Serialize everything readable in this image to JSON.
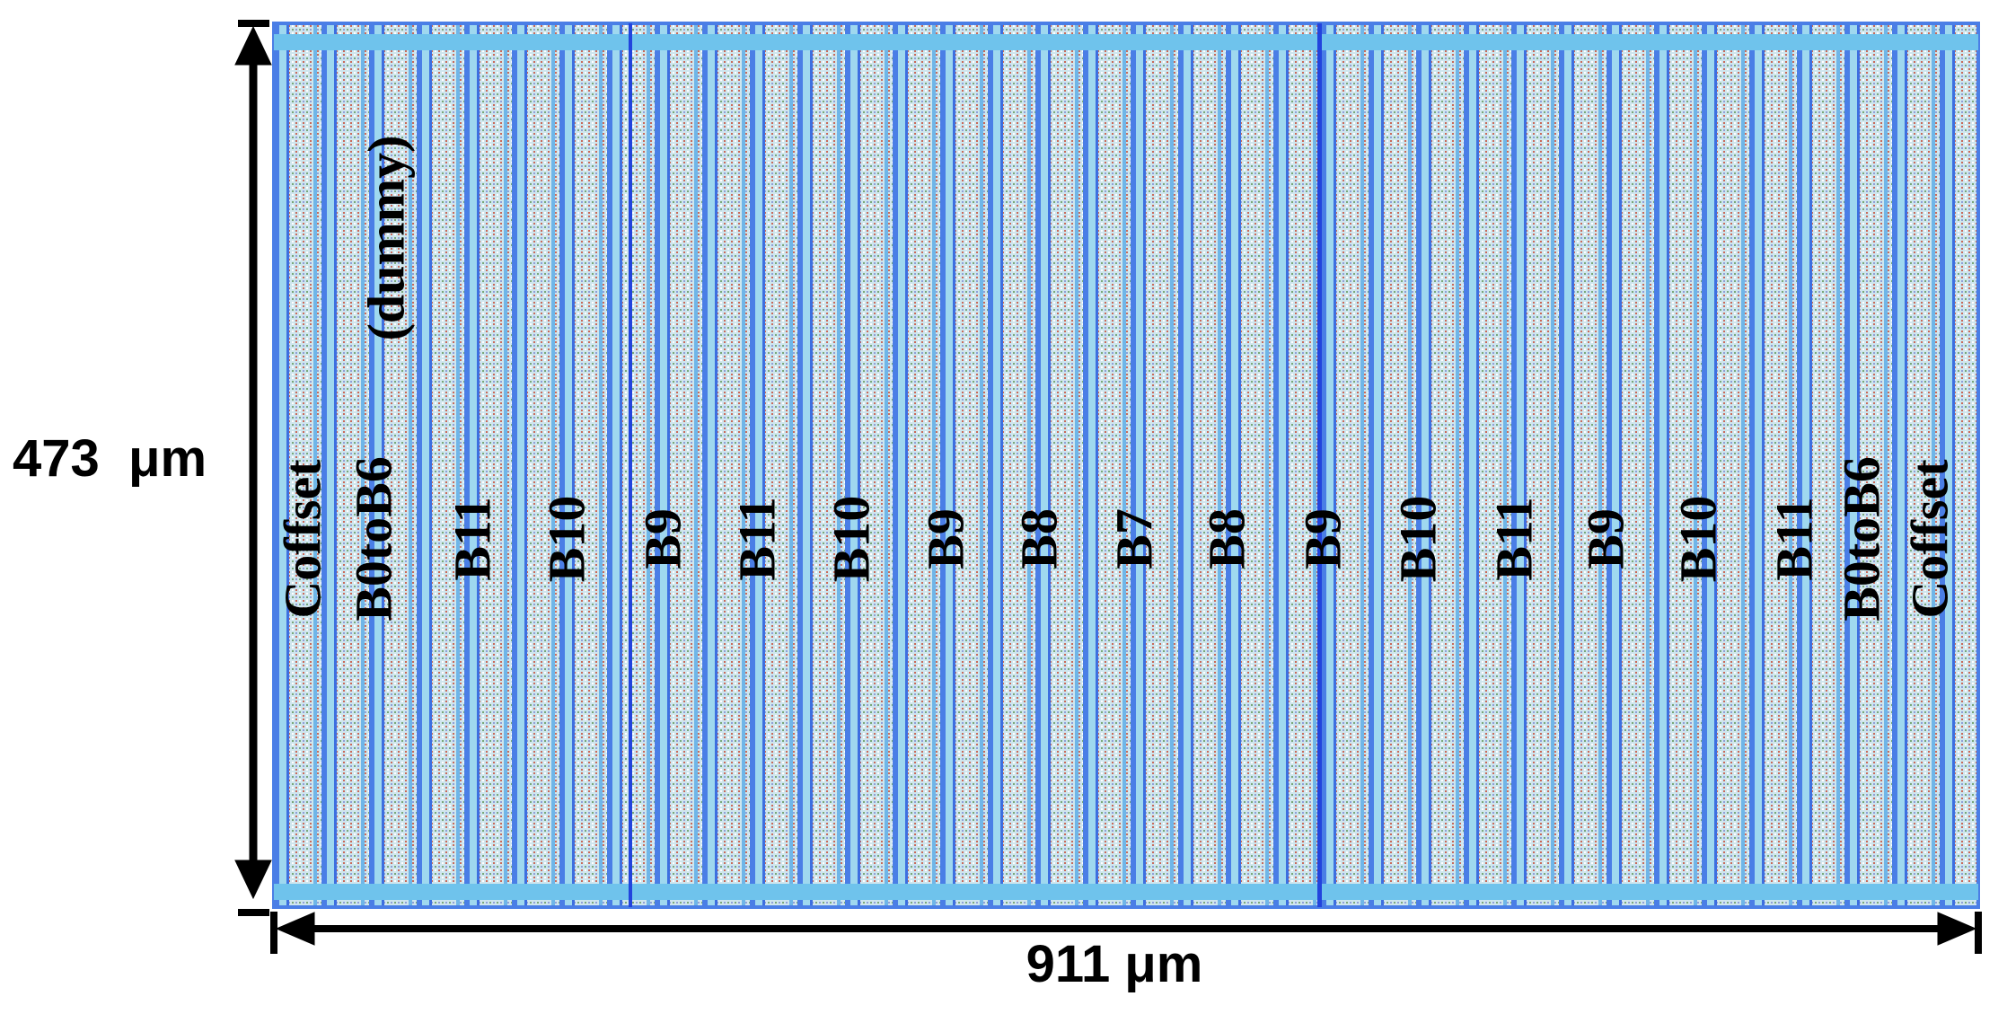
{
  "dimensions": {
    "height": "473  μm",
    "width": "911 μm"
  },
  "columns": [
    "Coffset",
    "B0toB6",
    "B11",
    "B10",
    "B9",
    "B11",
    "B10",
    "B9",
    "B8",
    "B7",
    "B8",
    "B9",
    "B10",
    "B11",
    "B9",
    "B10",
    "B11",
    "B0toB6",
    "Coffset"
  ],
  "dummy_note": "(dummy)"
}
